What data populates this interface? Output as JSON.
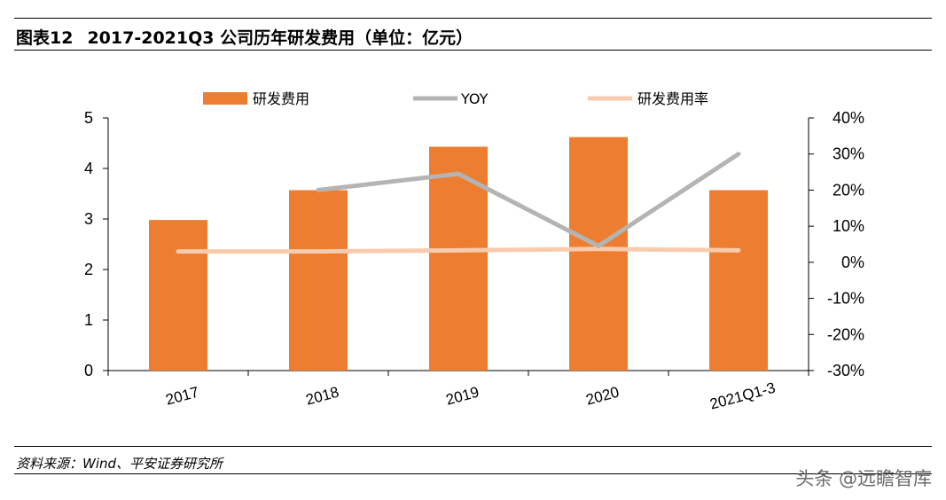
{
  "header": {
    "figure_label": "图表12",
    "figure_title": "2017-2021Q3 公司历年研发费用（单位：亿元）"
  },
  "footer": {
    "source": "资料来源：Wind、平安证券研究所",
    "watermark": "头条 @远瞻智库"
  },
  "colors": {
    "bar": "#ed7d31",
    "yoy": "#b4b4b4",
    "ratio": "#f8cbad"
  },
  "chart_data": {
    "type": "bar",
    "categories": [
      "2017",
      "2018",
      "2019",
      "2020",
      "2021Q1-3"
    ],
    "series": [
      {
        "name": "研发费用",
        "type": "bar",
        "axis": "left",
        "values": [
          2.98,
          3.57,
          4.43,
          4.62,
          3.57
        ]
      },
      {
        "name": "YOY",
        "type": "line",
        "axis": "right",
        "values": [
          null,
          0.2,
          0.245,
          0.045,
          0.3
        ]
      },
      {
        "name": "研发费用率",
        "type": "line",
        "axis": "right",
        "values": [
          0.03,
          0.03,
          0.033,
          0.037,
          0.033
        ]
      }
    ],
    "y_left": {
      "min": 0,
      "max": 5,
      "ticks": [
        "0",
        "1",
        "2",
        "3",
        "4",
        "5"
      ]
    },
    "y_right": {
      "min": -0.3,
      "max": 0.4,
      "ticks": [
        "-30%",
        "-20%",
        "-10%",
        "0%",
        "10%",
        "20%",
        "30%",
        "40%"
      ]
    },
    "grid": false,
    "legend_position": "top"
  }
}
